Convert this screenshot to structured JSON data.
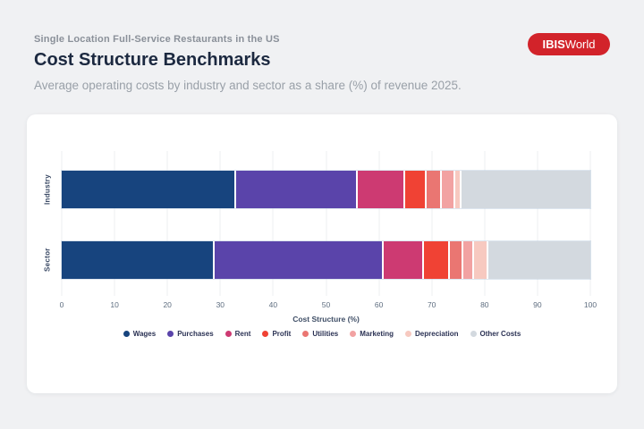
{
  "header": {
    "kicker": "Single Location Full-Service Restaurants in the US",
    "title": "Cost Structure Benchmarks",
    "subtitle": "Average operating costs by industry and sector as a share (%) of revenue 2025.",
    "logo": {
      "bold": "IBIS",
      "regular": "World",
      "bg_color": "#d2232a",
      "text_color": "#ffffff"
    }
  },
  "chart_data": {
    "type": "bar",
    "orientation": "horizontal",
    "stacked": true,
    "categories": [
      "Industry",
      "Sector"
    ],
    "series": [
      {
        "name": "Wages",
        "color": "#17447e",
        "values": [
          33.0,
          29.0
        ]
      },
      {
        "name": "Purchases",
        "color": "#5a44aa",
        "values": [
          23.0,
          32.0
        ]
      },
      {
        "name": "Rent",
        "color": "#cd3a72",
        "values": [
          8.9,
          7.5
        ]
      },
      {
        "name": "Profit",
        "color": "#f04234",
        "values": [
          4.2,
          5.0
        ]
      },
      {
        "name": "Utilities",
        "color": "#ea7672",
        "values": [
          2.8,
          2.4
        ]
      },
      {
        "name": "Marketing",
        "color": "#f2a2a2",
        "values": [
          2.5,
          2.1
        ]
      },
      {
        "name": "Depreciation",
        "color": "#f7c9c0",
        "values": [
          1.3,
          2.8
        ]
      },
      {
        "name": "Other Costs",
        "color": "#d3d9df",
        "values": [
          24.3,
          19.2
        ]
      }
    ],
    "xlabel": "Cost Structure (%)",
    "xlim": [
      0,
      100
    ],
    "x_ticks": [
      0,
      10,
      20,
      30,
      40,
      50,
      60,
      70,
      80,
      90,
      100
    ],
    "grid": true,
    "legend_position": "bottom"
  }
}
